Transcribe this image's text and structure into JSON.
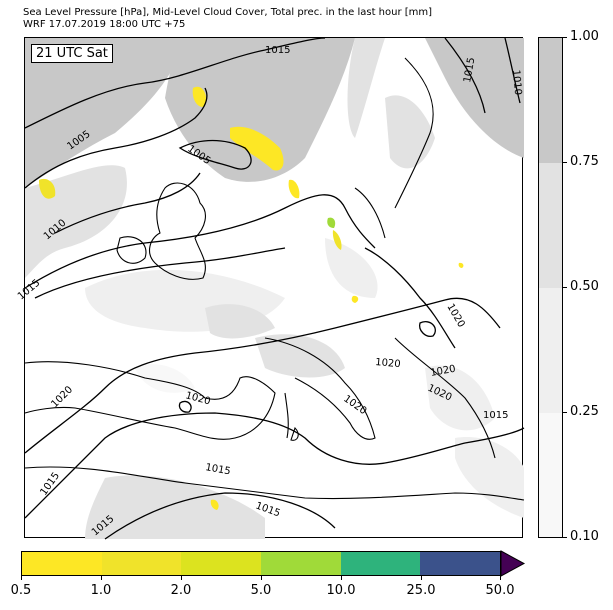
{
  "title": {
    "line1": "Sea Level Pressure [hPa], Mid-Level Cloud Cover, Total prec. in the last hour [mm]",
    "line2": "WRF 17.07.2019 18:00 UTC +75"
  },
  "map": {
    "time_label": "21 UTC Sat",
    "isobar_labels": [
      "1015",
      "1015",
      "1010",
      "1005",
      "1005",
      "1010",
      "1015",
      "1020",
      "1020",
      "1020",
      "1020",
      "1020",
      "1020",
      "1015",
      "1020",
      "1015",
      "1015",
      "1015",
      "1015"
    ]
  },
  "cloud_cover_colorbar": {
    "ticks": [
      "1.00",
      "0.75",
      "0.50",
      "0.25",
      "0.10"
    ],
    "colors": [
      "#c8c8c8",
      "#e2e2e2",
      "#efefef",
      "#f8f8f8"
    ]
  },
  "precip_colorbar": {
    "ticks": [
      "0.5",
      "1.0",
      "2.0",
      "5.0",
      "10.0",
      "25.0",
      "50.0"
    ],
    "colors": [
      "#fde725",
      "#f0e32a",
      "#dce31f",
      "#a0da39",
      "#2eb37c",
      "#3b528b"
    ],
    "extend_color": "#440154"
  }
}
